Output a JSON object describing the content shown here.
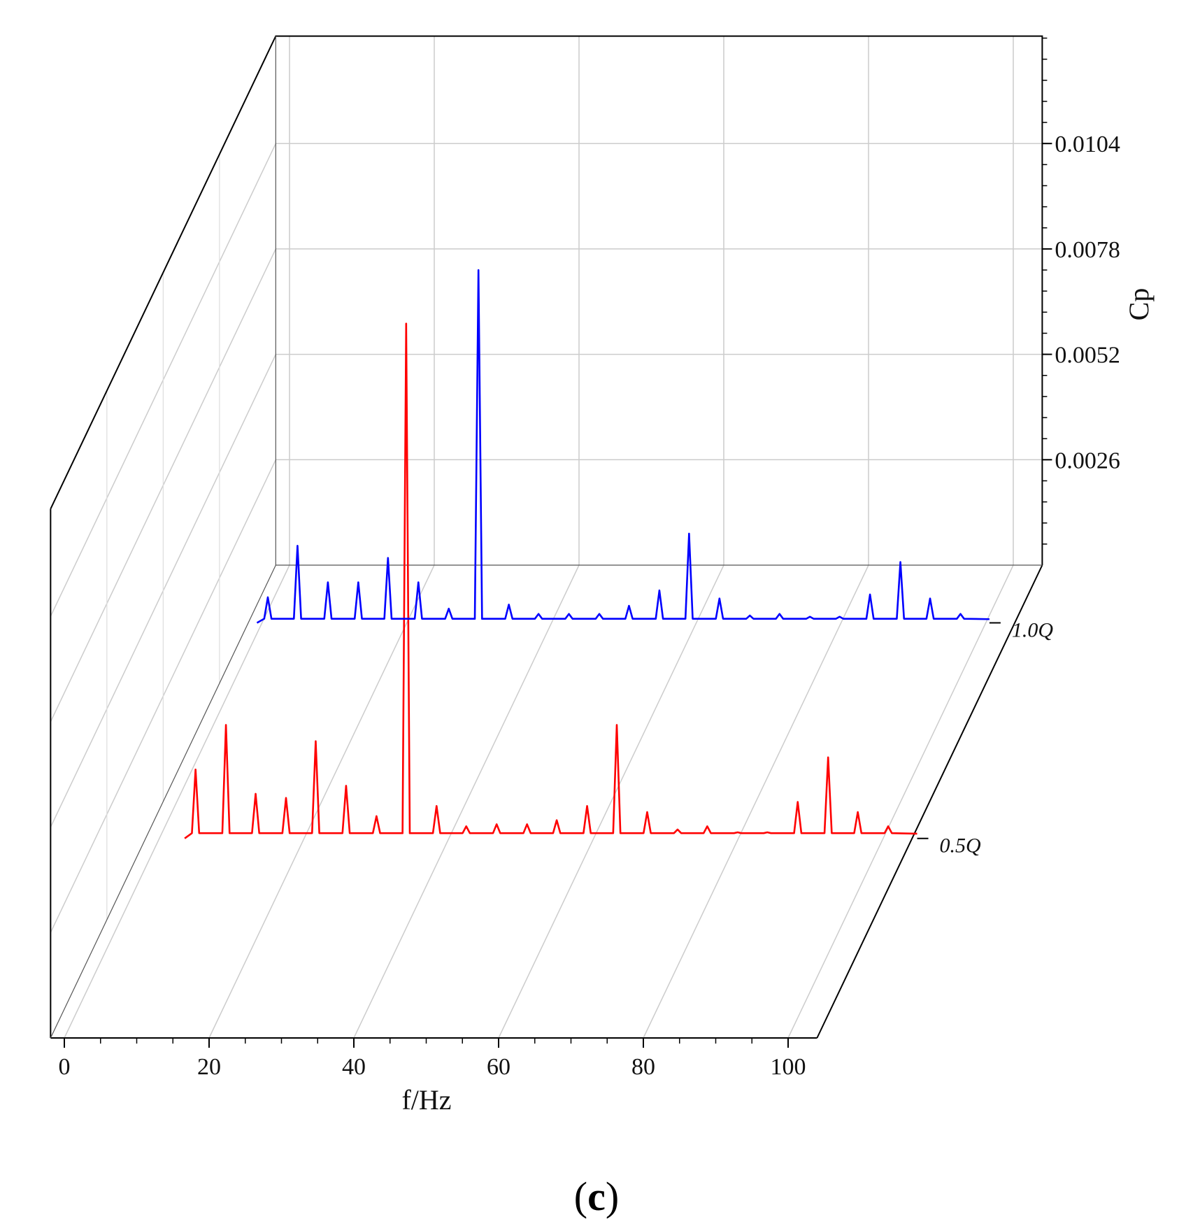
{
  "chart_data": {
    "type": "line",
    "title": "",
    "xlabel": "f/Hz",
    "ylabel": "Cp",
    "xlim": [
      0,
      100
    ],
    "x_ticks": [
      0,
      20,
      40,
      60,
      80,
      100
    ],
    "x_tick_labels": [
      "0",
      "20",
      "40",
      "60",
      "80",
      "100"
    ],
    "y_ticks": [
      0.0026,
      0.0052,
      0.0078,
      0.0104
    ],
    "y_tick_labels": [
      "0.0026",
      "0.0052",
      "0.0078",
      "0.0104"
    ],
    "ylim": [
      0,
      0.013
    ],
    "grid": true,
    "series": [
      {
        "name": "0.5Q",
        "color": "#ff0000",
        "baseline": 0.00013,
        "spikes": [
          {
            "x": 5.0,
            "y": 0.0017
          },
          {
            "x": 9.2,
            "y": 0.0028
          },
          {
            "x": 13.3,
            "y": 0.0011
          },
          {
            "x": 17.5,
            "y": 0.001
          },
          {
            "x": 21.6,
            "y": 0.0024
          },
          {
            "x": 25.8,
            "y": 0.0013
          },
          {
            "x": 30.0,
            "y": 0.00055
          },
          {
            "x": 34.1,
            "y": 0.0127
          },
          {
            "x": 38.3,
            "y": 0.0008
          },
          {
            "x": 42.4,
            "y": 0.0003
          },
          {
            "x": 46.6,
            "y": 0.00035
          },
          {
            "x": 50.8,
            "y": 0.00035
          },
          {
            "x": 54.9,
            "y": 0.00045
          },
          {
            "x": 59.1,
            "y": 0.0008
          },
          {
            "x": 63.2,
            "y": 0.0028
          },
          {
            "x": 67.4,
            "y": 0.00065
          },
          {
            "x": 71.6,
            "y": 0.00022
          },
          {
            "x": 75.7,
            "y": 0.0003
          },
          {
            "x": 79.9,
            "y": 0.00015
          },
          {
            "x": 84.0,
            "y": 0.00015
          },
          {
            "x": 88.2,
            "y": 0.0009
          },
          {
            "x": 92.4,
            "y": 0.002
          },
          {
            "x": 96.5,
            "y": 0.00065
          },
          {
            "x": 100.7,
            "y": 0.0003
          }
        ]
      },
      {
        "name": "1.0Q",
        "color": "#0000ff",
        "baseline": 0.0001,
        "spikes": [
          {
            "x": 0.8,
            "y": 0.00063
          },
          {
            "x": 4.9,
            "y": 0.0019
          },
          {
            "x": 9.1,
            "y": 0.001
          },
          {
            "x": 13.3,
            "y": 0.001
          },
          {
            "x": 17.4,
            "y": 0.0016
          },
          {
            "x": 21.6,
            "y": 0.001
          },
          {
            "x": 25.8,
            "y": 0.00035
          },
          {
            "x": 29.9,
            "y": 0.0087
          },
          {
            "x": 34.1,
            "y": 0.00045
          },
          {
            "x": 38.2,
            "y": 0.00022
          },
          {
            "x": 42.4,
            "y": 0.00022
          },
          {
            "x": 46.6,
            "y": 0.00022
          },
          {
            "x": 50.7,
            "y": 0.00042
          },
          {
            "x": 54.9,
            "y": 0.0008
          },
          {
            "x": 59.0,
            "y": 0.0022
          },
          {
            "x": 63.2,
            "y": 0.0006
          },
          {
            "x": 67.4,
            "y": 0.00018
          },
          {
            "x": 71.5,
            "y": 0.00022
          },
          {
            "x": 75.7,
            "y": 0.00015
          },
          {
            "x": 79.8,
            "y": 0.00015
          },
          {
            "x": 84.0,
            "y": 0.0007
          },
          {
            "x": 88.2,
            "y": 0.0015
          },
          {
            "x": 92.3,
            "y": 0.0006
          },
          {
            "x": 96.5,
            "y": 0.00022
          }
        ]
      }
    ]
  },
  "caption": {
    "open": "(",
    "letter": "c",
    "close": ")"
  }
}
